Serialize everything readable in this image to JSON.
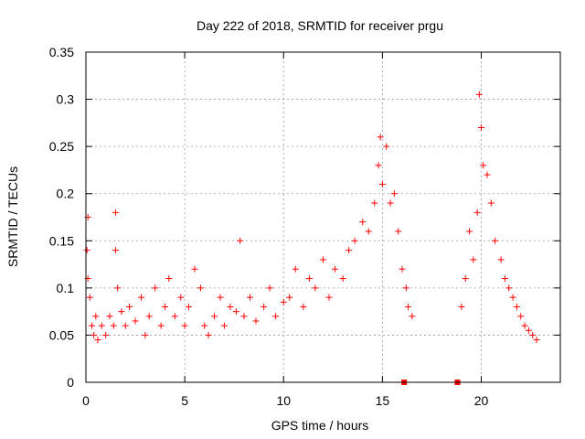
{
  "chart_data": {
    "type": "scatter",
    "title": "Day 222 of 2018, SRMTID for receiver prgu",
    "xlabel": "GPS time / hours",
    "ylabel": "SRMTID / TECUs",
    "xlim": [
      0,
      24
    ],
    "ylim": [
      0,
      0.35
    ],
    "x_ticks": [
      0,
      5,
      10,
      15,
      20
    ],
    "x_tick_labels": [
      "0",
      "5",
      "10",
      "15",
      "20"
    ],
    "y_ticks": [
      0,
      0.05,
      0.1,
      0.15,
      0.2,
      0.25,
      0.3,
      0.35
    ],
    "y_tick_labels": [
      "0",
      "0.05",
      "0.1",
      "0.15",
      "0.2",
      "0.25",
      "0.3",
      "0.35"
    ],
    "grid": true,
    "marker": "+",
    "color": "#ff0000",
    "series": [
      {
        "name": "SRMTID",
        "points": [
          [
            0.05,
            0.14
          ],
          [
            0.1,
            0.175
          ],
          [
            0.1,
            0.11
          ],
          [
            0.2,
            0.09
          ],
          [
            0.3,
            0.06
          ],
          [
            0.4,
            0.05
          ],
          [
            0.5,
            0.07
          ],
          [
            0.6,
            0.045
          ],
          [
            0.8,
            0.06
          ],
          [
            1.0,
            0.05
          ],
          [
            1.2,
            0.07
          ],
          [
            1.4,
            0.06
          ],
          [
            1.5,
            0.18
          ],
          [
            1.5,
            0.14
          ],
          [
            1.6,
            0.1
          ],
          [
            1.8,
            0.075
          ],
          [
            2.0,
            0.06
          ],
          [
            2.2,
            0.08
          ],
          [
            2.5,
            0.065
          ],
          [
            2.8,
            0.09
          ],
          [
            3.0,
            0.05
          ],
          [
            3.2,
            0.07
          ],
          [
            3.5,
            0.1
          ],
          [
            3.8,
            0.06
          ],
          [
            4.0,
            0.08
          ],
          [
            4.2,
            0.11
          ],
          [
            4.5,
            0.07
          ],
          [
            4.8,
            0.09
          ],
          [
            5.0,
            0.06
          ],
          [
            5.2,
            0.08
          ],
          [
            5.5,
            0.12
          ],
          [
            5.8,
            0.1
          ],
          [
            6.0,
            0.06
          ],
          [
            6.2,
            0.05
          ],
          [
            6.5,
            0.07
          ],
          [
            6.8,
            0.09
          ],
          [
            7.0,
            0.06
          ],
          [
            7.3,
            0.08
          ],
          [
            7.6,
            0.075
          ],
          [
            7.8,
            0.15
          ],
          [
            8.0,
            0.07
          ],
          [
            8.3,
            0.09
          ],
          [
            8.6,
            0.065
          ],
          [
            9.0,
            0.08
          ],
          [
            9.3,
            0.1
          ],
          [
            9.6,
            0.07
          ],
          [
            10.0,
            0.085
          ],
          [
            10.3,
            0.09
          ],
          [
            10.6,
            0.12
          ],
          [
            11.0,
            0.08
          ],
          [
            11.3,
            0.11
          ],
          [
            11.6,
            0.1
          ],
          [
            12.0,
            0.13
          ],
          [
            12.3,
            0.09
          ],
          [
            12.6,
            0.12
          ],
          [
            13.0,
            0.11
          ],
          [
            13.3,
            0.14
          ],
          [
            13.6,
            0.15
          ],
          [
            14.0,
            0.17
          ],
          [
            14.3,
            0.16
          ],
          [
            14.6,
            0.19
          ],
          [
            14.8,
            0.23
          ],
          [
            14.9,
            0.26
          ],
          [
            15.0,
            0.21
          ],
          [
            15.2,
            0.25
          ],
          [
            15.4,
            0.19
          ],
          [
            15.6,
            0.2
          ],
          [
            15.8,
            0.16
          ],
          [
            16.0,
            0.12
          ],
          [
            16.2,
            0.1
          ],
          [
            16.3,
            0.08
          ],
          [
            16.5,
            0.07
          ],
          [
            19.0,
            0.08
          ],
          [
            19.2,
            0.11
          ],
          [
            19.4,
            0.16
          ],
          [
            19.6,
            0.13
          ],
          [
            19.8,
            0.18
          ],
          [
            19.9,
            0.305
          ],
          [
            20.0,
            0.27
          ],
          [
            20.1,
            0.23
          ],
          [
            20.3,
            0.22
          ],
          [
            20.5,
            0.19
          ],
          [
            20.7,
            0.15
          ],
          [
            21.0,
            0.13
          ],
          [
            21.2,
            0.11
          ],
          [
            21.4,
            0.1
          ],
          [
            21.6,
            0.09
          ],
          [
            21.8,
            0.08
          ],
          [
            22.0,
            0.07
          ],
          [
            22.2,
            0.06
          ],
          [
            22.4,
            0.055
          ],
          [
            22.6,
            0.05
          ],
          [
            22.8,
            0.045
          ]
        ]
      }
    ],
    "zero_markers": [
      16.1,
      18.8
    ]
  }
}
